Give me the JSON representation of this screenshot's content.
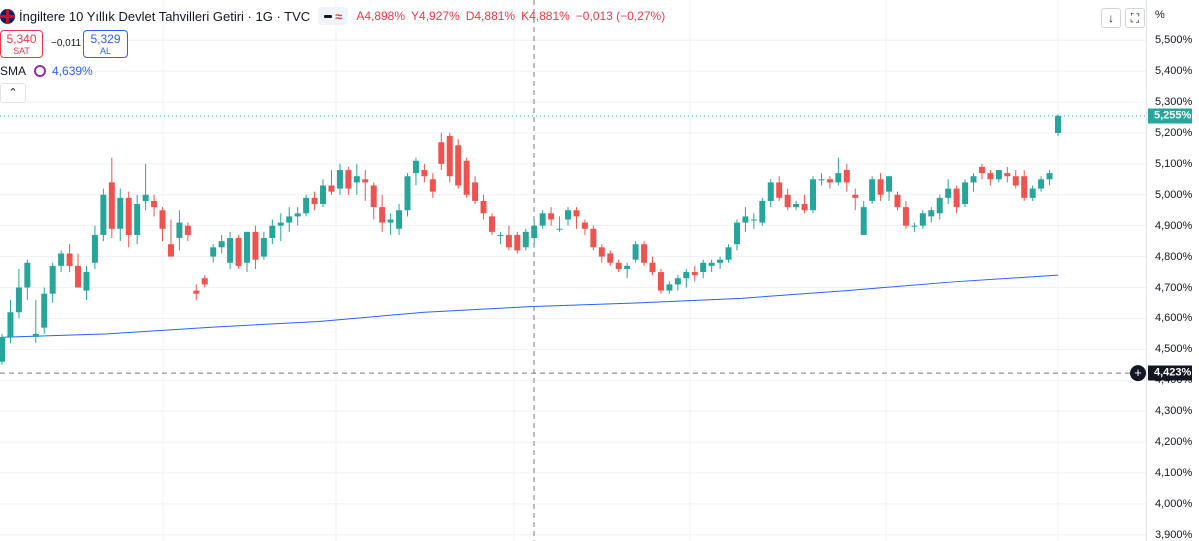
{
  "legend": {
    "title": "İngiltere 10 Yıllık Devlet Tahvilleri Getiri · 1G · TVC",
    "ohlc": {
      "open": "A4,898%",
      "high": "Y4,927%",
      "low": "D4,881%",
      "close": "K4,881%",
      "change": "−0,013 (−0,27%)"
    }
  },
  "trade": {
    "sell_price": "5,340",
    "sell_label": "SAT",
    "spread": "−0,011",
    "buy_price": "5,329",
    "buy_label": "AL"
  },
  "indicator": {
    "name": "SMA",
    "value": "4,639%"
  },
  "toolbar": {
    "arrow_down": "↓",
    "expand": "⛶",
    "collapse": "⌃"
  },
  "axis": {
    "unit": "%",
    "current_tag": "5,255%",
    "crosshair_tag": "4,423%",
    "crosshair_plus": "+"
  },
  "colors": {
    "up": "#26a69a",
    "down": "#ef5350",
    "sma": "#2962ff",
    "grid": "#eef1f6",
    "crosshair": "#787b86",
    "current_tag_bg": "#26a69a",
    "crosshair_tag_bg": "#131722"
  },
  "chart_data": {
    "type": "candlestick",
    "title": "İngiltere 10 Yıllık Devlet Tahvilleri Getiri · 1G · TVC",
    "ylabel": "%",
    "ylim": [
      3.88,
      5.63
    ],
    "y_ticks": [
      "5,500%",
      "5,400%",
      "5,300%",
      "5,200%",
      "5,100%",
      "5,000%",
      "4,900%",
      "4,800%",
      "4,700%",
      "4,600%",
      "4,500%",
      "4,400%",
      "4,300%",
      "4,200%",
      "4,100%",
      "4,000%",
      "3,900%"
    ],
    "y_tick_values": [
      5.5,
      5.4,
      5.3,
      5.2,
      5.1,
      5.0,
      4.9,
      4.8,
      4.7,
      4.6,
      4.5,
      4.4,
      4.3,
      4.2,
      4.1,
      4.0,
      3.9
    ],
    "current_value": 5.255,
    "crosshair_value": 4.423,
    "series": [
      {
        "name": "OHLC",
        "ohlc": [
          [
            4.46,
            4.55,
            4.45,
            4.54
          ],
          [
            4.54,
            4.66,
            4.52,
            4.62
          ],
          [
            4.62,
            4.76,
            4.6,
            4.7
          ],
          [
            4.7,
            4.79,
            4.66,
            4.78
          ],
          [
            4.54,
            4.66,
            4.52,
            4.55
          ],
          [
            4.57,
            4.7,
            4.55,
            4.68
          ],
          [
            4.68,
            4.78,
            4.65,
            4.77
          ],
          [
            4.77,
            4.82,
            4.75,
            4.81
          ],
          [
            4.81,
            4.84,
            4.75,
            4.77
          ],
          [
            4.77,
            4.81,
            4.7,
            4.7
          ],
          [
            4.69,
            4.77,
            4.66,
            4.75
          ],
          [
            4.78,
            4.9,
            4.76,
            4.87
          ],
          [
            4.87,
            5.02,
            4.85,
            5.0
          ],
          [
            5.04,
            5.12,
            4.86,
            4.89
          ],
          [
            4.89,
            5.02,
            4.85,
            4.99
          ],
          [
            4.99,
            5.01,
            4.83,
            4.87
          ],
          [
            4.87,
            5.0,
            4.84,
            4.97
          ],
          [
            4.98,
            5.1,
            4.95,
            5.0
          ],
          [
            4.98,
            5.0,
            4.93,
            4.96
          ],
          [
            4.95,
            4.96,
            4.85,
            4.89
          ],
          [
            4.84,
            4.92,
            4.8,
            4.8
          ],
          [
            4.86,
            4.95,
            4.82,
            4.91
          ],
          [
            4.9,
            4.91,
            4.85,
            4.87
          ],
          [
            4.69,
            4.71,
            4.66,
            4.68
          ],
          [
            4.73,
            4.74,
            4.7,
            4.71
          ],
          [
            4.8,
            4.84,
            4.78,
            4.83
          ],
          [
            4.83,
            4.87,
            4.81,
            4.85
          ],
          [
            4.78,
            4.88,
            4.76,
            4.86
          ],
          [
            4.86,
            4.87,
            4.76,
            4.77
          ],
          [
            4.78,
            4.88,
            4.75,
            4.88
          ],
          [
            4.88,
            4.9,
            4.76,
            4.79
          ],
          [
            4.8,
            4.88,
            4.79,
            4.86
          ],
          [
            4.86,
            4.92,
            4.84,
            4.9
          ],
          [
            4.9,
            4.94,
            4.85,
            4.91
          ],
          [
            4.91,
            4.96,
            4.88,
            4.93
          ],
          [
            4.93,
            4.96,
            4.9,
            4.94
          ],
          [
            4.94,
            5.0,
            4.93,
            4.99
          ],
          [
            4.99,
            5.01,
            4.95,
            4.97
          ],
          [
            4.97,
            5.05,
            4.96,
            5.03
          ],
          [
            5.03,
            5.08,
            5.0,
            5.01
          ],
          [
            5.02,
            5.1,
            5.0,
            5.08
          ],
          [
            5.08,
            5.09,
            5.0,
            5.02
          ],
          [
            5.04,
            5.1,
            5.0,
            5.06
          ],
          [
            5.05,
            5.08,
            4.98,
            5.04
          ],
          [
            5.03,
            5.04,
            4.92,
            4.96
          ],
          [
            4.96,
            5.0,
            4.88,
            4.91
          ],
          [
            4.91,
            4.94,
            4.87,
            4.92
          ],
          [
            4.89,
            4.97,
            4.87,
            4.95
          ],
          [
            4.95,
            5.07,
            4.93,
            5.06
          ],
          [
            5.07,
            5.12,
            5.03,
            5.11
          ],
          [
            5.08,
            5.1,
            5.04,
            5.06
          ],
          [
            5.05,
            5.07,
            4.99,
            5.01
          ],
          [
            5.17,
            5.2,
            5.08,
            5.1
          ],
          [
            5.19,
            5.2,
            5.04,
            5.06
          ],
          [
            5.16,
            5.18,
            5.02,
            5.03
          ],
          [
            5.11,
            5.12,
            4.99,
            5.0
          ],
          [
            5.04,
            5.06,
            4.97,
            4.98
          ],
          [
            4.98,
            5.0,
            4.92,
            4.94
          ],
          [
            4.93,
            4.94,
            4.87,
            4.88
          ],
          [
            4.87,
            4.88,
            4.84,
            4.87
          ],
          [
            4.87,
            4.9,
            4.82,
            4.83
          ],
          [
            4.87,
            4.88,
            4.81,
            4.82
          ],
          [
            4.83,
            4.89,
            4.82,
            4.88
          ],
          [
            4.86,
            4.92,
            4.84,
            4.9
          ],
          [
            4.9,
            4.95,
            4.89,
            4.94
          ],
          [
            4.94,
            4.96,
            4.9,
            4.92
          ],
          [
            4.89,
            4.93,
            4.88,
            4.89
          ],
          [
            4.92,
            4.96,
            4.9,
            4.95
          ],
          [
            4.95,
            4.96,
            4.89,
            4.93
          ],
          [
            4.91,
            4.92,
            4.87,
            4.89
          ],
          [
            4.89,
            4.9,
            4.82,
            4.83
          ],
          [
            4.83,
            4.84,
            4.78,
            4.8
          ],
          [
            4.81,
            4.82,
            4.77,
            4.78
          ],
          [
            4.78,
            4.79,
            4.75,
            4.76
          ],
          [
            4.76,
            4.78,
            4.73,
            4.77
          ],
          [
            4.79,
            4.85,
            4.78,
            4.84
          ],
          [
            4.84,
            4.85,
            4.77,
            4.78
          ],
          [
            4.78,
            4.8,
            4.74,
            4.75
          ],
          [
            4.75,
            4.76,
            4.68,
            4.69
          ],
          [
            4.69,
            4.72,
            4.68,
            4.71
          ],
          [
            4.71,
            4.74,
            4.69,
            4.73
          ],
          [
            4.73,
            4.76,
            4.7,
            4.75
          ],
          [
            4.75,
            4.77,
            4.72,
            4.74
          ],
          [
            4.75,
            4.79,
            4.73,
            4.78
          ],
          [
            4.77,
            4.79,
            4.75,
            4.78
          ],
          [
            4.78,
            4.8,
            4.76,
            4.79
          ],
          [
            4.79,
            4.84,
            4.78,
            4.83
          ],
          [
            4.84,
            4.92,
            4.82,
            4.91
          ],
          [
            4.91,
            4.96,
            4.88,
            4.93
          ],
          [
            4.92,
            4.94,
            4.89,
            4.92
          ],
          [
            4.91,
            4.99,
            4.9,
            4.98
          ],
          [
            4.98,
            5.05,
            4.96,
            5.04
          ],
          [
            5.04,
            5.06,
            4.98,
            4.99
          ],
          [
            5.0,
            5.02,
            4.95,
            4.96
          ],
          [
            4.96,
            4.98,
            4.95,
            4.97
          ],
          [
            4.97,
            5.0,
            4.94,
            4.95
          ],
          [
            4.95,
            5.06,
            4.94,
            5.05
          ],
          [
            5.05,
            5.07,
            5.03,
            5.05
          ],
          [
            5.05,
            5.06,
            5.02,
            5.04
          ],
          [
            5.04,
            5.12,
            5.03,
            5.07
          ],
          [
            5.08,
            5.1,
            5.01,
            5.04
          ],
          [
            5.0,
            5.02,
            4.95,
            4.99
          ],
          [
            4.87,
            4.98,
            4.87,
            4.96
          ],
          [
            4.98,
            5.06,
            4.97,
            5.05
          ],
          [
            5.05,
            5.07,
            4.98,
            5.0
          ],
          [
            5.01,
            5.06,
            4.98,
            5.06
          ],
          [
            5.0,
            5.01,
            4.95,
            4.96
          ],
          [
            4.96,
            4.98,
            4.89,
            4.9
          ],
          [
            4.9,
            4.91,
            4.88,
            4.9
          ],
          [
            4.9,
            4.95,
            4.89,
            4.94
          ],
          [
            4.93,
            4.96,
            4.91,
            4.95
          ],
          [
            4.94,
            5.0,
            4.92,
            4.99
          ],
          [
            4.99,
            5.05,
            4.97,
            5.02
          ],
          [
            5.02,
            5.03,
            4.94,
            4.96
          ],
          [
            4.97,
            5.05,
            4.96,
            5.04
          ],
          [
            5.04,
            5.07,
            5.01,
            5.06
          ],
          [
            5.09,
            5.1,
            5.05,
            5.07
          ],
          [
            5.07,
            5.08,
            5.03,
            5.05
          ],
          [
            5.05,
            5.08,
            5.04,
            5.08
          ],
          [
            5.07,
            5.09,
            5.04,
            5.06
          ],
          [
            5.06,
            5.08,
            5.02,
            5.03
          ],
          [
            5.06,
            5.08,
            4.98,
            4.99
          ],
          [
            4.99,
            5.03,
            4.98,
            5.02
          ],
          [
            5.02,
            5.06,
            5.01,
            5.05
          ],
          [
            5.05,
            5.08,
            5.03,
            5.07
          ],
          [
            5.2,
            5.26,
            5.19,
            5.255
          ]
        ]
      },
      {
        "name": "SMA",
        "points": [
          [
            0,
            4.539
          ],
          [
            0.1,
            4.55
          ],
          [
            0.2,
            4.572
          ],
          [
            0.3,
            4.59
          ],
          [
            0.4,
            4.62
          ],
          [
            0.5,
            4.638
          ],
          [
            0.6,
            4.65
          ],
          [
            0.7,
            4.665
          ],
          [
            0.8,
            4.69
          ],
          [
            0.9,
            4.718
          ],
          [
            1.0,
            4.74
          ]
        ]
      }
    ]
  }
}
